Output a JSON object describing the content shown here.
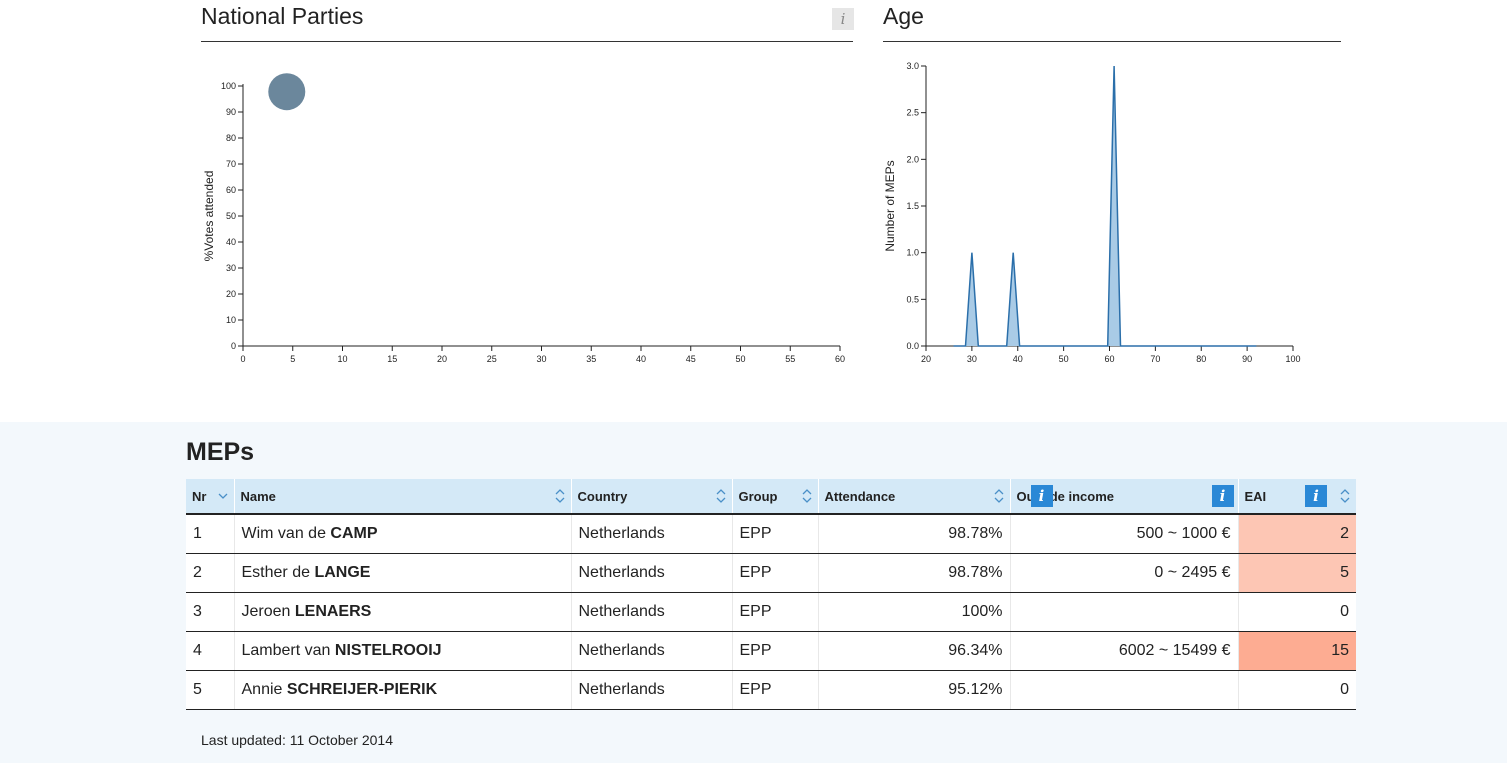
{
  "parties_panel": {
    "title": "National Parties",
    "info_label": "i",
    "chart_data": {
      "type": "scatter",
      "title": "",
      "xlabel": "",
      "ylabel": "%Votes attended",
      "xlim": [
        0,
        60
      ],
      "ylim": [
        0,
        100
      ],
      "x_ticks": [
        0,
        5,
        10,
        15,
        20,
        25,
        30,
        35,
        40,
        45,
        50,
        55,
        60
      ],
      "y_ticks": [
        0,
        10,
        20,
        30,
        40,
        50,
        60,
        70,
        80,
        90,
        100
      ],
      "points": [
        {
          "x": 4.4,
          "y": 97.8
        }
      ],
      "color": "#6b879c"
    }
  },
  "age_panel": {
    "title": "Age",
    "chart_data": {
      "type": "area",
      "title": "",
      "xlabel": "",
      "ylabel": "Number of MEPs",
      "xlim": [
        20,
        100
      ],
      "ylim": [
        0,
        3
      ],
      "x_ticks": [
        20,
        30,
        40,
        50,
        60,
        70,
        80,
        90,
        100
      ],
      "y_ticks": [
        "0.0",
        "0.5",
        "1.0",
        "1.5",
        "2.0",
        "2.5",
        "3.0"
      ],
      "x": [
        26,
        28.6,
        30,
        31.4,
        37.6,
        39,
        40.4,
        59.6,
        61,
        62.4,
        92
      ],
      "y": [
        0,
        0,
        1,
        0,
        0,
        1,
        0,
        0,
        3,
        0,
        0
      ],
      "stroke_color": "#2b6faa",
      "fill_color": "#a9cbe6"
    }
  },
  "meps": {
    "title": "MEPs",
    "columns": {
      "nr": "Nr",
      "name": "Name",
      "country": "Country",
      "group": "Group",
      "attendance": "Attendance",
      "outside_income": "Outside income",
      "eai": "EAI"
    },
    "info_label": "i",
    "rows": [
      {
        "nr": "1",
        "first": "Wim van de",
        "last": "CAMP",
        "country": "Netherlands",
        "group": "EPP",
        "attendance": "98.78%",
        "income": "500 ~ 1000 €",
        "eai": "2"
      },
      {
        "nr": "2",
        "first": "Esther de",
        "last": "LANGE",
        "country": "Netherlands",
        "group": "EPP",
        "attendance": "98.78%",
        "income": "0 ~ 2495 €",
        "eai": "5"
      },
      {
        "nr": "3",
        "first": "Jeroen",
        "last": "LENAERS",
        "country": "Netherlands",
        "group": "EPP",
        "attendance": "100%",
        "income": "",
        "eai": "0"
      },
      {
        "nr": "4",
        "first": "Lambert van",
        "last": "NISTELROOIJ",
        "country": "Netherlands",
        "group": "EPP",
        "attendance": "96.34%",
        "income": "6002 ~ 15499 €",
        "eai": "15"
      },
      {
        "nr": "5",
        "first": "Annie",
        "last": "SCHREIJER-PIERIK",
        "country": "Netherlands",
        "group": "EPP",
        "attendance": "95.12%",
        "income": "",
        "eai": "0"
      }
    ],
    "eai_colors": {
      "low": "#fdc6b4",
      "high": "#fdac92"
    }
  },
  "footer": {
    "last_updated": "Last updated: 11 October 2014"
  }
}
